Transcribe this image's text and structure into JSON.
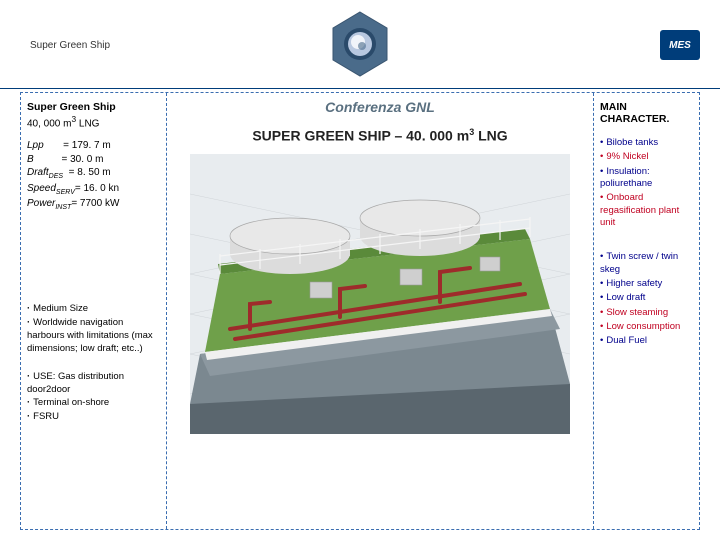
{
  "header": {
    "title": "Super Green Ship",
    "right_logo_text": "MES",
    "conference_label": "Conferenza GNL"
  },
  "left": {
    "title": "Super Green Ship",
    "subtitle_prefix": "40, 000 m",
    "subtitle_suffix": " LNG",
    "specs": [
      {
        "label": "Lpp",
        "sub": "",
        "val": "= 179. 7 m"
      },
      {
        "label": "B",
        "sub": "",
        "val": "=  30. 0 m"
      },
      {
        "label": "Draft",
        "sub": "DES",
        "val": "=  8. 50 m"
      },
      {
        "label": "Speed",
        "sub": "SERV",
        "val": "= 16. 0 kn"
      },
      {
        "label": "Power",
        "sub": "INST",
        "val": "= 7700 kW"
      }
    ],
    "bullets1": [
      "Medium Size",
      "Worldwide navigation harbours with limitations (max dimensions; low draft; etc..)"
    ],
    "bullets2": [
      "USE: Gas distribution door2door",
      "Terminal on-shore",
      "FSRU"
    ]
  },
  "center": {
    "title_prefix": "SUPER GREEN SHIP – 40. 000 m",
    "title_suffix": " LNG"
  },
  "right": {
    "title": "MAIN CHARACTER.",
    "group1": [
      {
        "text": "Bilobe tanks",
        "color": "navy"
      },
      {
        "text": "9% Nickel",
        "color": "red"
      },
      {
        "text": "Insulation: poliurethane",
        "color": "navy"
      },
      {
        "text": "Onboard regasification plant unit",
        "color": "red"
      }
    ],
    "group2": [
      {
        "text": "Twin screw / twin skeg",
        "color": "navy"
      },
      {
        "text": "Higher safety",
        "color": "navy"
      },
      {
        "text": "Low draft",
        "color": "navy"
      },
      {
        "text": "Slow steaming",
        "color": "red"
      },
      {
        "text": "Low consumption",
        "color": "red"
      },
      {
        "text": "Dual Fuel",
        "color": "navy"
      }
    ]
  },
  "render": {
    "hull_color": "#7b8890",
    "deck_color": "#6fa04a",
    "rail_color": "#e8e8e8",
    "pipe_color": "#9e2b2b",
    "tank_color": "#dcdcdc",
    "tank_shadow": "#a8a8a8",
    "background": "#e8ecef",
    "grid_color": "#d0d4d8"
  }
}
